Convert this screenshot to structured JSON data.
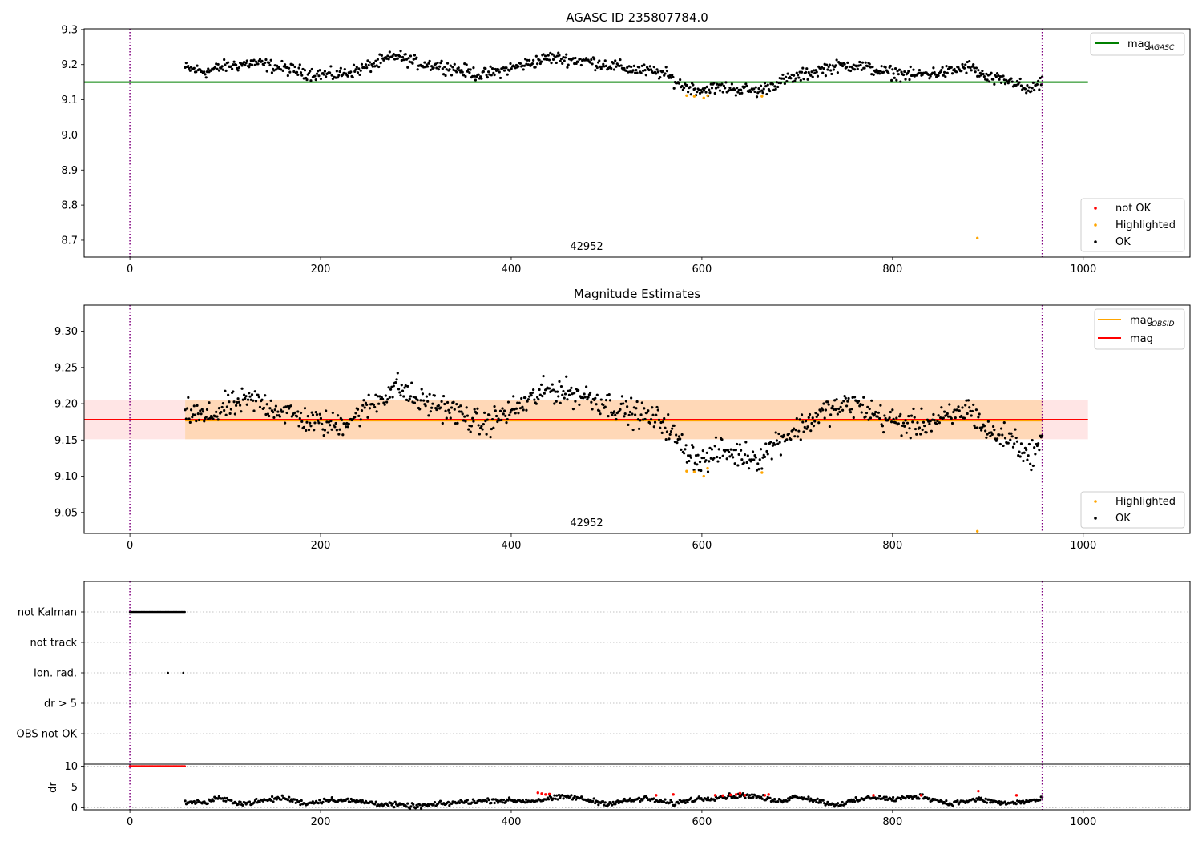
{
  "chart_data": [
    {
      "type": "scatter",
      "title": "AGASC ID 235807784.0",
      "xlabel": "",
      "ylabel": "",
      "xlim": [
        -48,
        1112
      ],
      "ylim": [
        8.652,
        9.302
      ],
      "xticks": [
        0,
        200,
        400,
        600,
        800,
        1000
      ],
      "yticks": [
        8.7,
        8.8,
        8.9,
        9.0,
        9.1,
        9.2,
        9.3
      ],
      "grid": false,
      "annotation": "42952",
      "vlines": [
        0,
        957
      ],
      "hlines": [
        {
          "name": "mag_AGASC",
          "y": 9.15,
          "x_range": [
            -48,
            1005
          ],
          "color": "#008000"
        }
      ],
      "series": [
        {
          "name": "not OK",
          "color": "#ff0000",
          "points": []
        },
        {
          "name": "Highlighted",
          "color": "#ffa500",
          "points": [
            [
              584,
              9.112
            ],
            [
              592,
              9.11
            ],
            [
              602,
              9.105
            ],
            [
              606,
              9.112
            ],
            [
              663,
              9.11
            ],
            [
              889,
              8.706
            ]
          ]
        },
        {
          "name": "OK",
          "color": "#000000",
          "trend": [
            [
              58,
              9.19
            ],
            [
              80,
              9.18
            ],
            [
              100,
              9.195
            ],
            [
              130,
              9.205
            ],
            [
              160,
              9.19
            ],
            [
              190,
              9.175
            ],
            [
              215,
              9.17
            ],
            [
              240,
              9.185
            ],
            [
              265,
              9.21
            ],
            [
              280,
              9.225
            ],
            [
              300,
              9.205
            ],
            [
              330,
              9.195
            ],
            [
              370,
              9.17
            ],
            [
              400,
              9.19
            ],
            [
              440,
              9.22
            ],
            [
              480,
              9.21
            ],
            [
              520,
              9.19
            ],
            [
              560,
              9.175
            ],
            [
              580,
              9.14
            ],
            [
              600,
              9.128
            ],
            [
              620,
              9.135
            ],
            [
              660,
              9.125
            ],
            [
              680,
              9.15
            ],
            [
              700,
              9.165
            ],
            [
              730,
              9.19
            ],
            [
              760,
              9.2
            ],
            [
              790,
              9.18
            ],
            [
              820,
              9.17
            ],
            [
              860,
              9.18
            ],
            [
              880,
              9.195
            ],
            [
              900,
              9.16
            ],
            [
              930,
              9.15
            ],
            [
              940,
              9.125
            ],
            [
              957,
              9.145
            ]
          ]
        }
      ],
      "legend": [
        {
          "label": "mag",
          "sub": "AGASC",
          "placement": "top-right"
        },
        {
          "labels": [
            "not OK",
            "Highlighted",
            "OK"
          ],
          "placement": "lower-right"
        }
      ]
    },
    {
      "type": "scatter",
      "title": "Magnitude Estimates",
      "xlabel": "",
      "ylabel": "",
      "xlim": [
        -48,
        1112
      ],
      "ylim": [
        9.021,
        9.336
      ],
      "xticks": [
        0,
        200,
        400,
        600,
        800,
        1000
      ],
      "yticks": [
        9.05,
        9.1,
        9.15,
        9.2,
        9.25,
        9.3
      ],
      "grid": false,
      "annotation": "42952",
      "vlines": [
        0,
        957
      ],
      "bands": [
        {
          "y0": 9.151,
          "y1": 9.205,
          "x_range": [
            -48,
            1005
          ],
          "color": "#ff0000"
        },
        {
          "y0": 9.151,
          "y1": 9.205,
          "x_range": [
            58,
            957
          ],
          "color": "#ffa500"
        }
      ],
      "hlines": [
        {
          "name": "mag_OBSID",
          "y": 9.177,
          "x_range": [
            58,
            957
          ],
          "color": "#ffa500"
        },
        {
          "name": "mag",
          "y": 9.178,
          "x_range": [
            -48,
            1005
          ],
          "color": "#ff0000"
        }
      ],
      "series": [
        {
          "name": "Highlighted",
          "color": "#ffa500",
          "points": [
            [
              584,
              9.107
            ],
            [
              592,
              9.106
            ],
            [
              602,
              9.1
            ],
            [
              606,
              9.111
            ],
            [
              663,
              9.105
            ],
            [
              889,
              9.024
            ]
          ]
        },
        {
          "name": "OK",
          "color": "#000000",
          "trend": [
            [
              58,
              9.19
            ],
            [
              80,
              9.18
            ],
            [
              100,
              9.195
            ],
            [
              130,
              9.205
            ],
            [
              160,
              9.19
            ],
            [
              190,
              9.175
            ],
            [
              215,
              9.17
            ],
            [
              240,
              9.185
            ],
            [
              265,
              9.21
            ],
            [
              280,
              9.225
            ],
            [
              300,
              9.205
            ],
            [
              330,
              9.195
            ],
            [
              370,
              9.17
            ],
            [
              400,
              9.19
            ],
            [
              440,
              9.22
            ],
            [
              480,
              9.21
            ],
            [
              520,
              9.19
            ],
            [
              560,
              9.175
            ],
            [
              580,
              9.14
            ],
            [
              600,
              9.12
            ],
            [
              620,
              9.135
            ],
            [
              660,
              9.125
            ],
            [
              680,
              9.15
            ],
            [
              700,
              9.165
            ],
            [
              730,
              9.19
            ],
            [
              760,
              9.2
            ],
            [
              790,
              9.18
            ],
            [
              820,
              9.17
            ],
            [
              860,
              9.18
            ],
            [
              880,
              9.195
            ],
            [
              900,
              9.16
            ],
            [
              930,
              9.15
            ],
            [
              940,
              9.125
            ],
            [
              957,
              9.145
            ]
          ]
        }
      ],
      "legend": [
        {
          "labels": [
            "mag",
            "mag"
          ],
          "subs": [
            "OBSID",
            ""
          ],
          "placement": "top-right"
        },
        {
          "labels": [
            "Highlighted",
            "OK"
          ],
          "placement": "lower-right"
        }
      ]
    },
    {
      "type": "scatter",
      "title": "",
      "xlabel": "",
      "ylabel": "",
      "xlim": [
        -48,
        1112
      ],
      "categories": [
        "not Kalman",
        "not track",
        "Ion. rad.",
        "dr > 5",
        "OBS not OK"
      ],
      "grid": true,
      "vlines": [
        0,
        957
      ],
      "flags": [
        {
          "category": "not Kalman",
          "x_range": [
            0,
            58
          ],
          "color": "#000000"
        },
        {
          "category": "Ion. rad.",
          "points": [
            40,
            56
          ],
          "color": "#000000"
        }
      ]
    },
    {
      "type": "scatter",
      "title": "",
      "xlabel": "",
      "ylabel": "dr",
      "xlim": [
        -48,
        1112
      ],
      "ylim": [
        -0.5,
        10.5
      ],
      "xticks": [
        0,
        200,
        400,
        600,
        800,
        1000
      ],
      "yticks": [
        0,
        5,
        10
      ],
      "grid": true,
      "vlines": [
        0,
        957
      ],
      "series": [
        {
          "name": "dr > 5",
          "color": "#ff0000",
          "x_range": [
            0,
            58
          ],
          "y": 10
        },
        {
          "name": "OK",
          "color": "#000000",
          "trend": [
            [
              58,
              1.5
            ],
            [
              80,
              1.2
            ],
            [
              90,
              2.3
            ],
            [
              120,
              1.0
            ],
            [
              160,
              2.4
            ],
            [
              185,
              1.0
            ],
            [
              210,
              2.0
            ],
            [
              240,
              1.5
            ],
            [
              270,
              0.8
            ],
            [
              300,
              0.3
            ],
            [
              340,
              1.2
            ],
            [
              380,
              1.8
            ],
            [
              420,
              1.6
            ],
            [
              460,
              2.7
            ],
            [
              500,
              1.0
            ],
            [
              540,
              2.2
            ],
            [
              570,
              1.0
            ],
            [
              590,
              2.0
            ],
            [
              620,
              2.6
            ],
            [
              650,
              3.0
            ],
            [
              680,
              1.5
            ],
            [
              700,
              2.8
            ],
            [
              740,
              0.7
            ],
            [
              780,
              2.6
            ],
            [
              800,
              2.0
            ],
            [
              830,
              2.8
            ],
            [
              860,
              1.0
            ],
            [
              890,
              2.0
            ],
            [
              920,
              1.0
            ],
            [
              957,
              2.0
            ]
          ]
        },
        {
          "name": "not OK",
          "color": "#ff0000",
          "points": [
            [
              428,
              3.6
            ],
            [
              432,
              3.4
            ],
            [
              436,
              3.2
            ],
            [
              440,
              3.3
            ],
            [
              552,
              3.0
            ],
            [
              570,
              3.2
            ],
            [
              614,
              3.0
            ],
            [
              622,
              2.9
            ],
            [
              630,
              3.1
            ],
            [
              636,
              3.2
            ],
            [
              640,
              3.5
            ],
            [
              645,
              3.0
            ],
            [
              666,
              3.0
            ],
            [
              670,
              3.2
            ],
            [
              780,
              3.0
            ],
            [
              830,
              3.0
            ],
            [
              890,
              4.0
            ],
            [
              930,
              3.0
            ]
          ]
        }
      ]
    }
  ]
}
